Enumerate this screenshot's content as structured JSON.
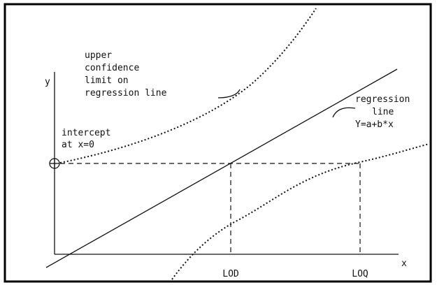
{
  "axes": {
    "y": "y",
    "x": "x"
  },
  "labels": {
    "upper_confidence": [
      "upper",
      "confidence",
      "limit on",
      "regression line"
    ],
    "regression": [
      "regression",
      "line",
      "Y=a+b*x"
    ],
    "intercept": [
      "intercept",
      "at x=0"
    ],
    "lod": "LOD",
    "loq": "LOQ"
  }
}
